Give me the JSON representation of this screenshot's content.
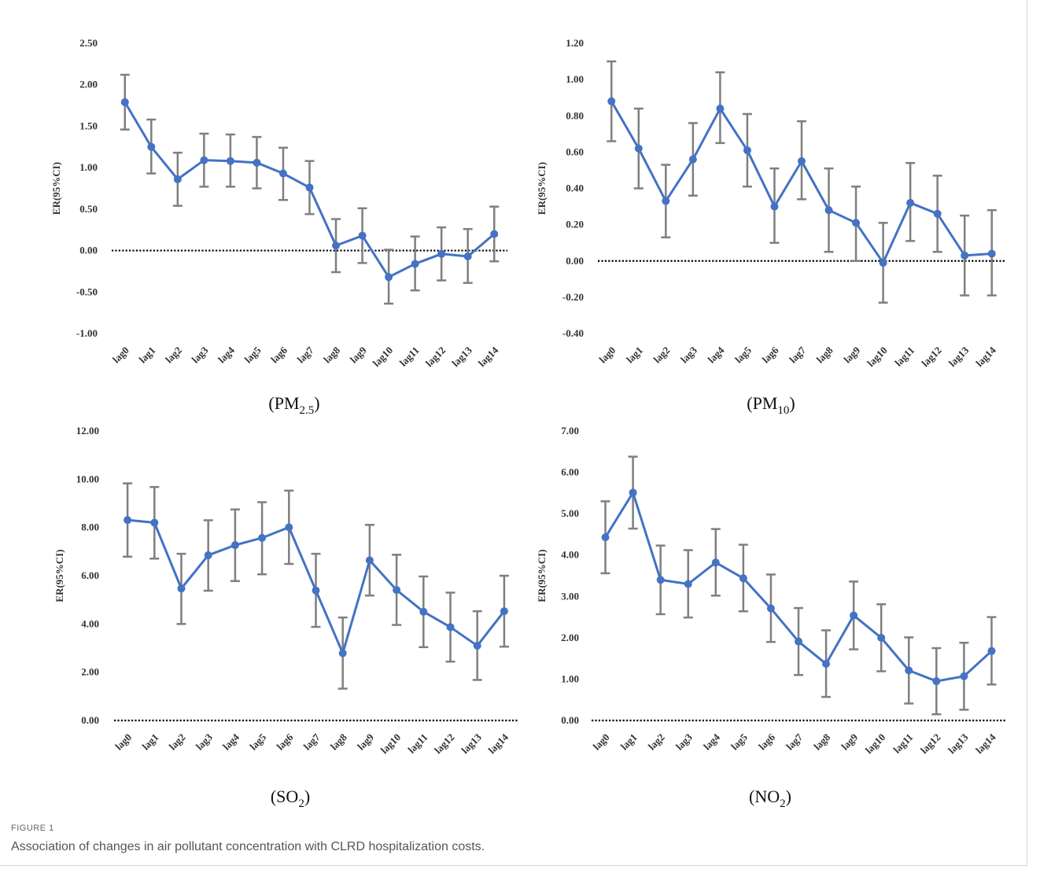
{
  "figure": {
    "label": "FIGURE 1",
    "caption": "Association of changes in air pollutant concentration with CLRD hospitalization costs."
  },
  "colors": {
    "line": "#4472C4",
    "errorbar": "#7f7f7f",
    "reference": "#000000"
  },
  "chart_data": [
    {
      "type": "line",
      "title_main": "PM",
      "title_sub": "2.5",
      "ylabel": "ER(95%CI)",
      "categories": [
        "lag0",
        "lag1",
        "lag2",
        "lag3",
        "lag4",
        "lag5",
        "lag6",
        "lag7",
        "lag8",
        "lag9",
        "lag10",
        "lag11",
        "lag12",
        "lag13",
        "lag14"
      ],
      "ylim": [
        -1.0,
        2.5
      ],
      "yticks": [
        -1.0,
        -0.5,
        0.0,
        0.5,
        1.0,
        1.5,
        2.0,
        2.5
      ],
      "ytick_labels": [
        "-1.00",
        "-0.50",
        "0.00",
        "0.50",
        "1.00",
        "1.50",
        "2.00",
        "2.50"
      ],
      "reference_line": 0,
      "values": [
        1.79,
        1.25,
        0.86,
        1.09,
        1.08,
        1.06,
        0.93,
        0.76,
        0.06,
        0.18,
        -0.32,
        -0.16,
        -0.04,
        -0.07,
        0.2
      ],
      "lower": [
        1.46,
        0.93,
        0.54,
        0.77,
        0.77,
        0.75,
        0.61,
        0.44,
        -0.26,
        -0.15,
        -0.64,
        -0.48,
        -0.36,
        -0.39,
        -0.13
      ],
      "upper": [
        2.12,
        1.58,
        1.18,
        1.41,
        1.4,
        1.37,
        1.24,
        1.08,
        0.38,
        0.51,
        0.01,
        0.17,
        0.28,
        0.26,
        0.53
      ]
    },
    {
      "type": "line",
      "title_main": "PM",
      "title_sub": "10",
      "ylabel": "ER(95%CI)",
      "categories": [
        "lag0",
        "lag1",
        "lag2",
        "lag3",
        "lag4",
        "lag5",
        "lag6",
        "lag7",
        "lag8",
        "lag9",
        "lag10",
        "lag11",
        "lag12",
        "lag13",
        "lag14"
      ],
      "ylim": [
        -0.4,
        1.2
      ],
      "yticks": [
        -0.4,
        -0.2,
        0.0,
        0.2,
        0.4,
        0.6,
        0.8,
        1.0,
        1.2
      ],
      "ytick_labels": [
        "-0.40",
        "-0.20",
        "0.00",
        "0.20",
        "0.40",
        "0.60",
        "0.80",
        "1.00",
        "1.20"
      ],
      "reference_line": 0,
      "values": [
        0.88,
        0.62,
        0.33,
        0.56,
        0.84,
        0.61,
        0.3,
        0.55,
        0.28,
        0.21,
        -0.01,
        0.32,
        0.26,
        0.03,
        0.04
      ],
      "lower": [
        0.66,
        0.4,
        0.13,
        0.36,
        0.65,
        0.41,
        0.1,
        0.34,
        0.05,
        0.0,
        -0.23,
        0.11,
        0.05,
        -0.19,
        -0.19
      ],
      "upper": [
        1.1,
        0.84,
        0.53,
        0.76,
        1.04,
        0.81,
        0.51,
        0.77,
        0.51,
        0.41,
        0.21,
        0.54,
        0.47,
        0.25,
        0.28
      ]
    },
    {
      "type": "line",
      "title_main": "SO",
      "title_sub": "2",
      "ylabel": "ER(95%CI)",
      "categories": [
        "lag0",
        "lag1",
        "lag2",
        "lag3",
        "lag4",
        "lag5",
        "lag6",
        "lag7",
        "lag8",
        "lag9",
        "lag10",
        "lag11",
        "lag12",
        "lag13",
        "lag14"
      ],
      "ylim": [
        0.0,
        12.0
      ],
      "yticks": [
        0,
        2,
        4,
        6,
        8,
        10,
        12
      ],
      "ytick_labels": [
        "0.00",
        "2.00",
        "4.00",
        "6.00",
        "8.00",
        "10.00",
        "12.00"
      ],
      "reference_line": 0,
      "values": [
        8.31,
        8.2,
        5.47,
        6.85,
        7.27,
        7.57,
        8.01,
        5.39,
        2.79,
        6.64,
        5.41,
        4.51,
        3.87,
        3.1,
        4.53
      ],
      "lower": [
        6.79,
        6.71,
        4.0,
        5.38,
        5.78,
        6.06,
        6.49,
        3.88,
        1.32,
        5.18,
        3.96,
        3.04,
        2.44,
        1.68,
        3.06
      ],
      "upper": [
        9.83,
        9.68,
        6.91,
        8.3,
        8.75,
        9.05,
        9.53,
        6.91,
        4.27,
        8.11,
        6.87,
        5.97,
        5.3,
        4.53,
        6.0
      ]
    },
    {
      "type": "line",
      "title_main": "NO",
      "title_sub": "2",
      "ylabel": "ER(95%CI)",
      "categories": [
        "lag0",
        "lag1",
        "lag2",
        "lag3",
        "lag4",
        "lag5",
        "lag6",
        "lag7",
        "lag8",
        "lag9",
        "lag10",
        "lag11",
        "lag12",
        "lag13",
        "lag14"
      ],
      "ylim": [
        0.0,
        7.0
      ],
      "yticks": [
        0,
        1,
        2,
        3,
        4,
        5,
        6,
        7
      ],
      "ytick_labels": [
        "0.00",
        "1.00",
        "2.00",
        "3.00",
        "4.00",
        "5.00",
        "6.00",
        "7.00"
      ],
      "reference_line": 0,
      "values": [
        4.43,
        5.51,
        3.4,
        3.3,
        3.82,
        3.44,
        2.71,
        1.91,
        1.37,
        2.54,
        2.0,
        1.21,
        0.95,
        1.07,
        1.68
      ],
      "lower": [
        3.56,
        4.64,
        2.57,
        2.49,
        3.02,
        2.64,
        1.9,
        1.1,
        0.57,
        1.72,
        1.19,
        0.41,
        0.15,
        0.26,
        0.87
      ],
      "upper": [
        5.3,
        6.38,
        4.23,
        4.12,
        4.63,
        4.25,
        3.53,
        2.72,
        2.18,
        3.36,
        2.81,
        2.01,
        1.75,
        1.88,
        2.5
      ]
    }
  ]
}
